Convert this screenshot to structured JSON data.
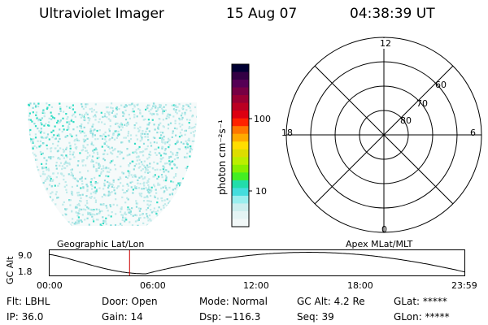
{
  "header": {
    "instrument": "Ultraviolet Imager",
    "date": "15 Aug 07",
    "time": "04:38:39 UT"
  },
  "colorbar": {
    "label": "photon cm⁻²s⁻¹",
    "ticks": [
      "100",
      "10"
    ],
    "colors": [
      "#000033",
      "#330044",
      "#550055",
      "#770044",
      "#990033",
      "#bb0022",
      "#dd0011",
      "#ff2200",
      "#ff7700",
      "#ffaa00",
      "#ffdd00",
      "#dddd00",
      "#bbee00",
      "#88ee00",
      "#44ee22",
      "#22ddaa",
      "#44dddd",
      "#99eeee",
      "#cceeee",
      "#e4f4f4",
      "#f2f8f8"
    ]
  },
  "polar": {
    "mlt_labels": {
      "top": "12",
      "left": "18",
      "right": "6",
      "bottom": "0"
    },
    "lat_labels": [
      "60",
      "70",
      "80"
    ]
  },
  "orbit": {
    "left_title": "Geographic Lat/Lon",
    "right_title": "Apex MLat/MLT",
    "axis_label": "GC Alt",
    "y_ticks": [
      "9.0",
      "1.8"
    ],
    "x_ticks": [
      "00:00",
      "06:00",
      "12:00",
      "18:00",
      "23:59"
    ],
    "current_time_hours": 4.64
  },
  "info": {
    "row1": [
      "Flt: LBHL",
      "Door: Open",
      "Mode: Normal",
      "GC Alt: 4.2 Re",
      "GLat: *****"
    ],
    "row2": [
      "IP: 36.0",
      "Gain: 14",
      "Dsp: −116.3",
      "Seq: 39",
      "GLon: *****"
    ]
  },
  "colors": {
    "marker": "#cc0000",
    "dot_light": "#bfeaea",
    "dot_mid": "#8fdede",
    "dot_strong": "#33dcc4"
  }
}
